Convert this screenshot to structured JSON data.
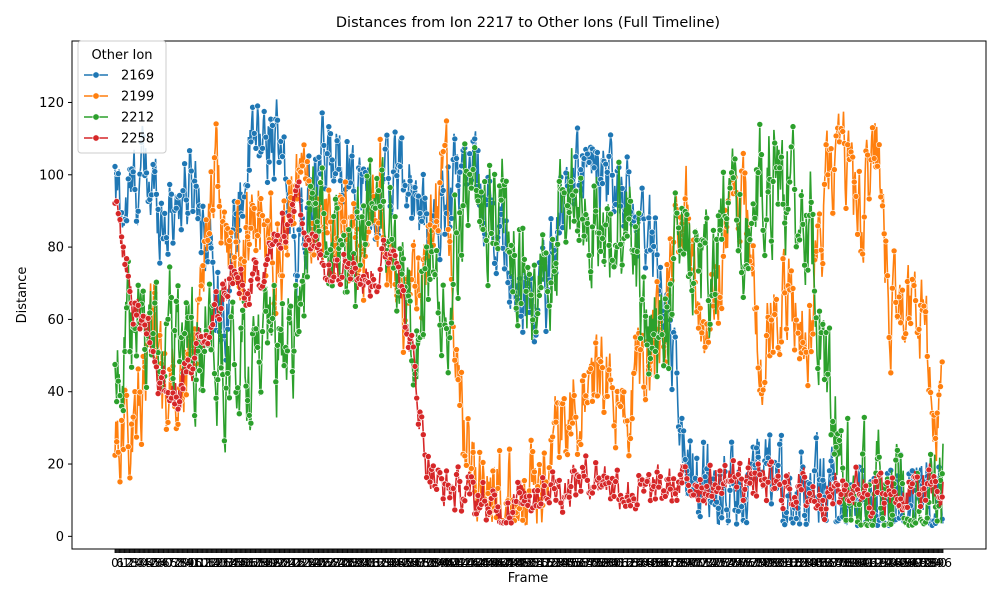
{
  "chart_data": {
    "type": "line",
    "title": "Distances from Ion 2217 to Other Ions (Full Timeline)",
    "xlabel": "Frame",
    "ylabel": "Distance",
    "ylim": [
      -3.5,
      137
    ],
    "yticks": [
      0,
      20,
      40,
      60,
      80,
      100,
      120
    ],
    "frame_count": 1000,
    "grid": false,
    "markers": "circle",
    "legend": {
      "title": "Other Ion",
      "placement": "top-left"
    },
    "series": [
      {
        "name": "2169",
        "color": "#1f77b4",
        "anchors": [
          [
            0,
            95
          ],
          [
            12,
            90
          ],
          [
            30,
            100
          ],
          [
            45,
            96
          ],
          [
            60,
            88
          ],
          [
            80,
            95
          ],
          [
            100,
            97
          ],
          [
            130,
            60
          ],
          [
            160,
            105
          ],
          [
            190,
            112
          ],
          [
            220,
            80
          ],
          [
            250,
            102
          ],
          [
            280,
            106
          ],
          [
            310,
            90
          ],
          [
            340,
            101
          ],
          [
            360,
            95
          ],
          [
            380,
            80
          ],
          [
            400,
            95
          ],
          [
            420,
            104
          ],
          [
            440,
            98
          ],
          [
            460,
            82
          ],
          [
            480,
            72
          ],
          [
            500,
            65
          ],
          [
            520,
            68
          ],
          [
            540,
            95
          ],
          [
            560,
            100
          ],
          [
            580,
            98
          ],
          [
            600,
            96
          ],
          [
            620,
            92
          ],
          [
            640,
            85
          ],
          [
            660,
            72
          ],
          [
            670,
            58
          ],
          [
            680,
            38
          ],
          [
            685,
            24
          ],
          [
            695,
            16
          ],
          [
            720,
            14
          ],
          [
            760,
            15
          ],
          [
            800,
            12
          ],
          [
            840,
            11
          ],
          [
            880,
            12
          ],
          [
            920,
            10
          ],
          [
            960,
            9
          ],
          [
            999,
            12
          ]
        ],
        "noise": 10
      },
      {
        "name": "2199",
        "color": "#ff7f0e",
        "anchors": [
          [
            0,
            30
          ],
          [
            15,
            28
          ],
          [
            30,
            35
          ],
          [
            45,
            58
          ],
          [
            60,
            42
          ],
          [
            80,
            40
          ],
          [
            100,
            62
          ],
          [
            120,
            105
          ],
          [
            140,
            70
          ],
          [
            160,
            84
          ],
          [
            180,
            88
          ],
          [
            200,
            76
          ],
          [
            220,
            96
          ],
          [
            240,
            90
          ],
          [
            260,
            86
          ],
          [
            280,
            92
          ],
          [
            300,
            70
          ],
          [
            320,
            102
          ],
          [
            340,
            55
          ],
          [
            360,
            74
          ],
          [
            380,
            80
          ],
          [
            400,
            100
          ],
          [
            410,
            60
          ],
          [
            420,
            26
          ],
          [
            435,
            15
          ],
          [
            460,
            12
          ],
          [
            480,
            9
          ],
          [
            510,
            11
          ],
          [
            530,
            25
          ],
          [
            545,
            35
          ],
          [
            560,
            38
          ],
          [
            580,
            42
          ],
          [
            600,
            38
          ],
          [
            620,
            36
          ],
          [
            630,
            44
          ],
          [
            640,
            50
          ],
          [
            655,
            55
          ],
          [
            670,
            72
          ],
          [
            690,
            90
          ],
          [
            710,
            60
          ],
          [
            730,
            72
          ],
          [
            750,
            100
          ],
          [
            760,
            95
          ],
          [
            780,
            48
          ],
          [
            800,
            68
          ],
          [
            820,
            62
          ],
          [
            840,
            58
          ],
          [
            860,
            98
          ],
          [
            880,
            102
          ],
          [
            900,
            88
          ],
          [
            920,
            108
          ],
          [
            935,
            60
          ],
          [
            950,
            70
          ],
          [
            970,
            62
          ],
          [
            990,
            35
          ],
          [
            999,
            45
          ]
        ],
        "noise": 11
      },
      {
        "name": "2212",
        "color": "#2ca02c",
        "anchors": [
          [
            0,
            49
          ],
          [
            20,
            52
          ],
          [
            40,
            54
          ],
          [
            60,
            58
          ],
          [
            80,
            52
          ],
          [
            100,
            50
          ],
          [
            120,
            48
          ],
          [
            140,
            47
          ],
          [
            160,
            46
          ],
          [
            180,
            48
          ],
          [
            200,
            50
          ],
          [
            220,
            60
          ],
          [
            240,
            95
          ],
          [
            260,
            80
          ],
          [
            280,
            75
          ],
          [
            300,
            90
          ],
          [
            320,
            95
          ],
          [
            340,
            80
          ],
          [
            360,
            45
          ],
          [
            380,
            80
          ],
          [
            400,
            58
          ],
          [
            420,
            88
          ],
          [
            440,
            92
          ],
          [
            460,
            95
          ],
          [
            480,
            84
          ],
          [
            500,
            66
          ],
          [
            520,
            62
          ],
          [
            540,
            95
          ],
          [
            560,
            88
          ],
          [
            580,
            92
          ],
          [
            600,
            80
          ],
          [
            620,
            98
          ],
          [
            640,
            55
          ],
          [
            660,
            48
          ],
          [
            680,
            90
          ],
          [
            700,
            78
          ],
          [
            720,
            70
          ],
          [
            740,
            92
          ],
          [
            760,
            75
          ],
          [
            780,
            100
          ],
          [
            800,
            100
          ],
          [
            820,
            95
          ],
          [
            840,
            85
          ],
          [
            860,
            42
          ],
          [
            870,
            28
          ],
          [
            880,
            15
          ],
          [
            900,
            11
          ],
          [
            920,
            9
          ],
          [
            940,
            6
          ],
          [
            960,
            5
          ],
          [
            980,
            7
          ],
          [
            999,
            10
          ]
        ],
        "noise": 14
      },
      {
        "name": "2258",
        "color": "#d62728",
        "anchors": [
          [
            0,
            90
          ],
          [
            10,
            80
          ],
          [
            20,
            68
          ],
          [
            30,
            60
          ],
          [
            40,
            58
          ],
          [
            55,
            42
          ],
          [
            70,
            38
          ],
          [
            85,
            44
          ],
          [
            100,
            50
          ],
          [
            120,
            60
          ],
          [
            140,
            72
          ],
          [
            160,
            66
          ],
          [
            180,
            76
          ],
          [
            200,
            82
          ],
          [
            220,
            95
          ],
          [
            240,
            80
          ],
          [
            260,
            74
          ],
          [
            280,
            80
          ],
          [
            300,
            70
          ],
          [
            320,
            74
          ],
          [
            340,
            82
          ],
          [
            350,
            60
          ],
          [
            360,
            48
          ],
          [
            375,
            22
          ],
          [
            390,
            14
          ],
          [
            420,
            12
          ],
          [
            440,
            10
          ],
          [
            460,
            7
          ],
          [
            480,
            9
          ],
          [
            500,
            12
          ],
          [
            520,
            14
          ],
          [
            540,
            13
          ],
          [
            560,
            16
          ],
          [
            580,
            17
          ],
          [
            600,
            15
          ],
          [
            620,
            12
          ],
          [
            640,
            12
          ],
          [
            660,
            13
          ],
          [
            680,
            14
          ],
          [
            700,
            15
          ],
          [
            720,
            14
          ],
          [
            740,
            16
          ],
          [
            760,
            16
          ],
          [
            780,
            15
          ],
          [
            800,
            14
          ],
          [
            820,
            13
          ],
          [
            840,
            12
          ],
          [
            860,
            12
          ],
          [
            880,
            13
          ],
          [
            900,
            14
          ],
          [
            920,
            12
          ],
          [
            940,
            11
          ],
          [
            960,
            12
          ],
          [
            980,
            13
          ],
          [
            999,
            12
          ]
        ],
        "noise": 4.5
      }
    ]
  }
}
